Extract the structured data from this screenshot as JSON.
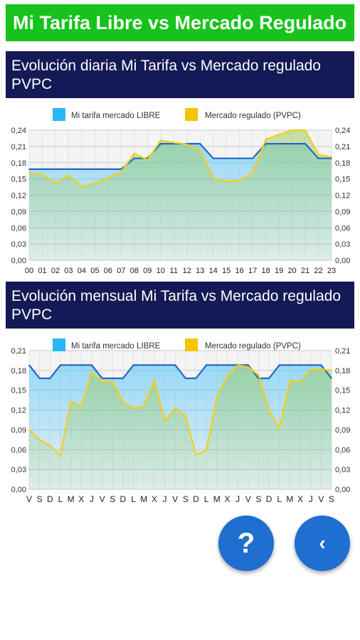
{
  "header": {
    "title": "Mi Tarifa Libre vs Mercado Regulado"
  },
  "sections": {
    "daily": {
      "title": "Evolución diaria Mi Tarifa vs Mercado regulado PVPC"
    },
    "monthly": {
      "title": "Evolución mensual Mi Tarifa vs Mercado regulado PVPC"
    }
  },
  "colors": {
    "libre_line": "#2466c7",
    "libre_fill": "#4fc3f7",
    "pvpc_line": "#f2cf1a",
    "pvpc_fill": "#9ccc65",
    "legend_libre": "#29b6f6",
    "legend_pvpc": "#f5c400"
  },
  "chart_data": [
    {
      "type": "area",
      "legend": [
        "Mi tarifa mercado LIBRE",
        "Mercado regulado (PVPC)"
      ],
      "legend_position": "top-center",
      "grid": true,
      "ylim": [
        0,
        0.24
      ],
      "y_ticks": [
        "0,00",
        "0,03",
        "0,06",
        "0,09",
        "0,12",
        "0,15",
        "0,18",
        "0,21",
        "0,24"
      ],
      "categories": [
        "00",
        "01",
        "02",
        "03",
        "04",
        "05",
        "06",
        "07",
        "08",
        "09",
        "10",
        "11",
        "12",
        "13",
        "14",
        "15",
        "16",
        "17",
        "18",
        "19",
        "20",
        "21",
        "22",
        "23"
      ],
      "series": [
        {
          "name": "Mi tarifa mercado LIBRE",
          "values": [
            0.168,
            0.168,
            0.168,
            0.168,
            0.168,
            0.168,
            0.168,
            0.168,
            0.188,
            0.188,
            0.215,
            0.215,
            0.215,
            0.215,
            0.188,
            0.188,
            0.188,
            0.188,
            0.215,
            0.215,
            0.215,
            0.215,
            0.188,
            0.188
          ]
        },
        {
          "name": "Mercado regulado (PVPC)",
          "values": [
            0.162,
            0.158,
            0.142,
            0.157,
            0.136,
            0.142,
            0.152,
            0.163,
            0.197,
            0.185,
            0.221,
            0.217,
            0.214,
            0.203,
            0.151,
            0.145,
            0.147,
            0.161,
            0.223,
            0.232,
            0.24,
            0.24,
            0.195,
            0.19
          ]
        }
      ]
    },
    {
      "type": "area",
      "legend": [
        "Mi tarifa mercado LIBRE",
        "Mercado regulado (PVPC)"
      ],
      "legend_position": "top-center",
      "grid": true,
      "ylim": [
        0,
        0.21
      ],
      "y_ticks": [
        "0,00",
        "0,03",
        "0,06",
        "0,09",
        "0,12",
        "0,15",
        "0,18",
        "0,21"
      ],
      "categories": [
        "V",
        "S",
        "D",
        "L",
        "M",
        "X",
        "J",
        "V",
        "S",
        "D",
        "L",
        "M",
        "X",
        "J",
        "V",
        "S",
        "D",
        "L",
        "M",
        "X",
        "J",
        "V",
        "S",
        "D",
        "L",
        "M",
        "X",
        "J",
        "V",
        "S"
      ],
      "series": [
        {
          "name": "Mi tarifa mercado LIBRE",
          "values": [
            0.188,
            0.168,
            0.168,
            0.188,
            0.188,
            0.188,
            0.188,
            0.168,
            0.168,
            0.168,
            0.188,
            0.188,
            0.188,
            0.188,
            0.188,
            0.168,
            0.168,
            0.188,
            0.188,
            0.188,
            0.188,
            0.188,
            0.168,
            0.168,
            0.188,
            0.188,
            0.188,
            0.188,
            0.188,
            0.168
          ]
        },
        {
          "name": "Mercado regulado (PVPC)",
          "values": [
            0.09,
            0.075,
            0.066,
            0.051,
            0.133,
            0.125,
            0.177,
            0.163,
            0.163,
            0.132,
            0.122,
            0.126,
            0.165,
            0.103,
            0.123,
            0.111,
            0.052,
            0.059,
            0.14,
            0.171,
            0.188,
            0.185,
            0.173,
            0.12,
            0.092,
            0.165,
            0.163,
            0.181,
            0.182,
            0.18
          ]
        }
      ]
    }
  ],
  "buttons": {
    "help_label": "?",
    "back_label": "‹"
  }
}
